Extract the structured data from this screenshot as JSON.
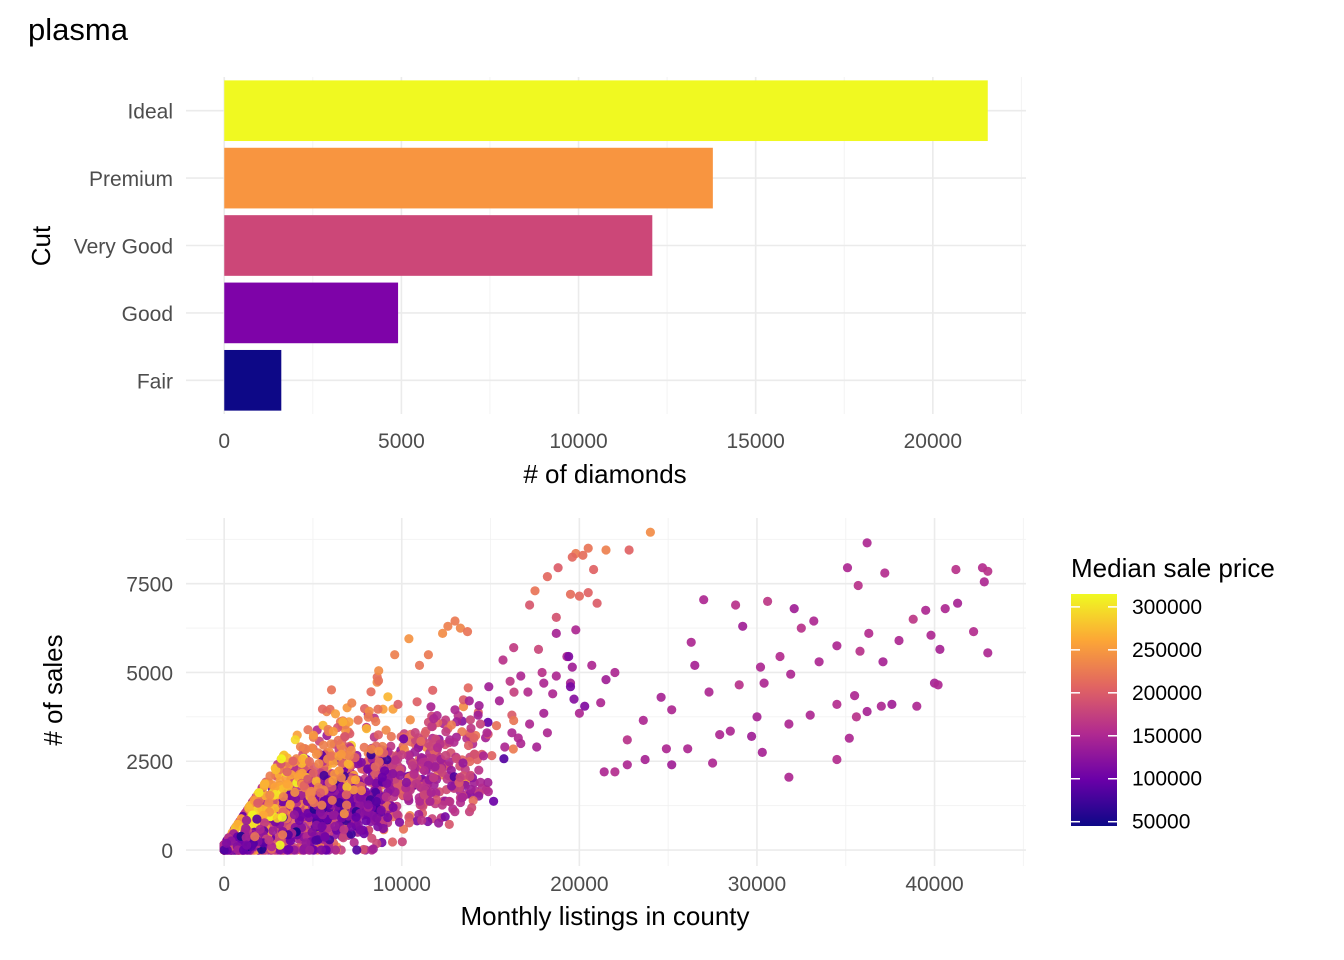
{
  "figure": {
    "title": "plasma",
    "palette": [
      "#0d0887",
      "#6a00a8",
      "#b12a90",
      "#e16462",
      "#fca636",
      "#f0f921"
    ]
  },
  "chart_data": [
    {
      "type": "bar",
      "orientation": "horizontal",
      "categories": [
        "Fair",
        "Good",
        "Very Good",
        "Premium",
        "Ideal"
      ],
      "values": [
        1610,
        4906,
        12082,
        13791,
        21551
      ],
      "colors": [
        "#0d0887",
        "#7e03a8",
        "#cc4778",
        "#f89540",
        "#f0f921"
      ],
      "xlabel": "# of diamonds",
      "ylabel": "Cut",
      "xlim": [
        -1080,
        22630
      ],
      "xticks": [
        "0",
        "5000",
        "10000",
        "15000",
        "20000"
      ],
      "grid": true
    },
    {
      "type": "scatter",
      "xlabel": "Monthly listings in county",
      "ylabel": "# of sales",
      "xlim": [
        -2150,
        45150
      ],
      "ylim": [
        -450,
        9350
      ],
      "xticks": [
        "0",
        "10000",
        "20000",
        "30000",
        "40000"
      ],
      "yticks": [
        "0",
        "2500",
        "5000",
        "7500"
      ],
      "grid": true,
      "color_scale": {
        "title": "Median sale price",
        "min": 45000,
        "max": 315000,
        "ticks": [
          "50000",
          "100000",
          "150000",
          "200000",
          "250000",
          "300000"
        ],
        "colormap": "plasma",
        "legend_position": "right"
      },
      "points_explicit": [
        [
          24000,
          8950,
          240000
        ],
        [
          20500,
          8500,
          220000
        ],
        [
          21500,
          8450,
          230000
        ],
        [
          19800,
          8350,
          225000
        ],
        [
          20200,
          8300,
          215000
        ],
        [
          19600,
          8250,
          210000
        ],
        [
          22800,
          8450,
          205000
        ],
        [
          18800,
          7950,
          200000
        ],
        [
          20800,
          7900,
          205000
        ],
        [
          18200,
          7700,
          210000
        ],
        [
          17500,
          7300,
          220000
        ],
        [
          19500,
          7200,
          215000
        ],
        [
          20000,
          7150,
          210000
        ],
        [
          20500,
          7250,
          205000
        ],
        [
          21000,
          6950,
          200000
        ],
        [
          17200,
          6900,
          195000
        ],
        [
          18700,
          6550,
          190000
        ],
        [
          13300,
          6250,
          235000
        ],
        [
          13700,
          6150,
          220000
        ],
        [
          12600,
          6300,
          230000
        ],
        [
          12300,
          6100,
          240000
        ],
        [
          13000,
          6450,
          225000
        ],
        [
          10400,
          5950,
          245000
        ],
        [
          9600,
          5500,
          230000
        ],
        [
          8700,
          5050,
          240000
        ],
        [
          11500,
          5500,
          225000
        ],
        [
          11000,
          5200,
          220000
        ],
        [
          26300,
          5850,
          150000
        ],
        [
          26500,
          5200,
          145000
        ],
        [
          29200,
          6300,
          140000
        ],
        [
          27000,
          7050,
          150000
        ],
        [
          28800,
          6900,
          160000
        ],
        [
          30600,
          7000,
          165000
        ],
        [
          32500,
          6250,
          160000
        ],
        [
          33200,
          6450,
          150000
        ],
        [
          36200,
          8650,
          150000
        ],
        [
          35100,
          7950,
          150000
        ],
        [
          35700,
          7450,
          160000
        ],
        [
          37200,
          7800,
          155000
        ],
        [
          41200,
          7900,
          160000
        ],
        [
          42700,
          7950,
          155000
        ],
        [
          43000,
          7850,
          160000
        ],
        [
          42800,
          7550,
          150000
        ],
        [
          43000,
          5550,
          150000
        ],
        [
          41300,
          6950,
          145000
        ],
        [
          40600,
          6800,
          150000
        ],
        [
          39500,
          6750,
          150000
        ],
        [
          38800,
          6500,
          165000
        ],
        [
          39800,
          6050,
          150000
        ],
        [
          42200,
          6150,
          155000
        ],
        [
          40300,
          5650,
          145000
        ],
        [
          40000,
          4700,
          145000
        ],
        [
          40200,
          4650,
          150000
        ],
        [
          39000,
          4050,
          150000
        ],
        [
          37600,
          4100,
          140000
        ],
        [
          37000,
          4050,
          150000
        ],
        [
          36200,
          3900,
          145000
        ],
        [
          35500,
          4350,
          150000
        ],
        [
          35600,
          3750,
          160000
        ],
        [
          34500,
          4100,
          155000
        ],
        [
          33000,
          3800,
          150000
        ],
        [
          31800,
          3550,
          150000
        ],
        [
          30000,
          3750,
          145000
        ],
        [
          29700,
          3200,
          140000
        ],
        [
          28500,
          3350,
          150000
        ],
        [
          27900,
          3250,
          150000
        ],
        [
          29000,
          4650,
          160000
        ],
        [
          30400,
          4700,
          150000
        ],
        [
          31900,
          4950,
          150000
        ],
        [
          33500,
          5300,
          150000
        ],
        [
          34500,
          5750,
          150000
        ],
        [
          35800,
          5600,
          160000
        ],
        [
          36300,
          6100,
          155000
        ],
        [
          37100,
          5300,
          145000
        ],
        [
          38000,
          5900,
          150000
        ],
        [
          32100,
          6800,
          140000
        ],
        [
          31300,
          5450,
          155000
        ],
        [
          30200,
          5150,
          150000
        ],
        [
          27300,
          4450,
          150000
        ],
        [
          25200,
          3950,
          150000
        ],
        [
          24600,
          4300,
          145000
        ],
        [
          23600,
          3650,
          150000
        ],
        [
          22700,
          3100,
          160000
        ],
        [
          21400,
          2200,
          150000
        ],
        [
          22000,
          2200,
          155000
        ],
        [
          22700,
          2400,
          150000
        ],
        [
          23700,
          2550,
          145000
        ],
        [
          24900,
          2850,
          150000
        ],
        [
          25200,
          2400,
          140000
        ],
        [
          26100,
          2850,
          150000
        ],
        [
          27500,
          2450,
          150000
        ],
        [
          30300,
          2750,
          145000
        ],
        [
          31800,
          2050,
          150000
        ],
        [
          35200,
          3150,
          150000
        ],
        [
          34500,
          2550,
          155000
        ],
        [
          22000,
          5000,
          150000
        ],
        [
          21500,
          4800,
          140000
        ],
        [
          20700,
          5200,
          150000
        ],
        [
          19600,
          5150,
          140000
        ],
        [
          19300,
          5450,
          150000
        ],
        [
          18700,
          4900,
          150000
        ],
        [
          19500,
          4700,
          145000
        ],
        [
          21200,
          4150,
          150000
        ],
        [
          20000,
          3850,
          150000
        ],
        [
          19700,
          4250,
          120000
        ],
        [
          19500,
          4600,
          110000
        ],
        [
          20300,
          4050,
          115000
        ],
        [
          19400,
          5450,
          115000
        ],
        [
          17700,
          5650,
          180000
        ],
        [
          16300,
          5700,
          170000
        ],
        [
          15700,
          5350,
          160000
        ],
        [
          16700,
          4900,
          150000
        ],
        [
          14900,
          4600,
          140000
        ],
        [
          13800,
          4200,
          145000
        ],
        [
          13000,
          3950,
          150000
        ],
        [
          16100,
          4750,
          165000
        ],
        [
          17100,
          4450,
          155000
        ],
        [
          18500,
          4400,
          150000
        ],
        [
          18000,
          3850,
          145000
        ],
        [
          17200,
          3550,
          150000
        ],
        [
          16700,
          3000,
          150000
        ],
        [
          17600,
          2900,
          145000
        ],
        [
          18200,
          3300,
          150000
        ],
        [
          16200,
          3300,
          150000
        ],
        [
          15800,
          2900,
          150000
        ],
        [
          14800,
          3300,
          150000
        ],
        [
          14600,
          2650,
          150000
        ],
        [
          15500,
          4200,
          145000
        ],
        [
          14300,
          3800,
          140000
        ],
        [
          12700,
          3100,
          150000
        ],
        [
          11800,
          3700,
          150000
        ],
        [
          18700,
          6100,
          145000
        ],
        [
          19800,
          6200,
          150000
        ],
        [
          17900,
          5000,
          160000
        ],
        [
          18000,
          4700,
          150000
        ]
      ],
      "point_clusters": [
        {
          "cx": 3000,
          "cy": 800,
          "sx": 2500,
          "sy": 800,
          "n": 520,
          "base_price": 190000,
          "price_sd": 35000,
          "slope": 0.32
        },
        {
          "cx": 9500,
          "cy": 1900,
          "sx": 2600,
          "sy": 700,
          "n": 420,
          "base_price": 175000,
          "price_sd": 30000,
          "slope": 0.25
        },
        {
          "cx": 6500,
          "cy": 1200,
          "sx": 1800,
          "sy": 600,
          "n": 260,
          "base_price": 110000,
          "price_sd": 20000,
          "slope": 0.2
        },
        {
          "cx": 2500,
          "cy": 1500,
          "sx": 1200,
          "sy": 600,
          "n": 130,
          "base_price": 260000,
          "price_sd": 30000,
          "slope": 0.45
        },
        {
          "cx": 6500,
          "cy": 2700,
          "sx": 1600,
          "sy": 700,
          "n": 110,
          "base_price": 230000,
          "price_sd": 25000,
          "slope": 0.35
        },
        {
          "cx": 1000,
          "cy": 150,
          "sx": 700,
          "sy": 180,
          "n": 180,
          "base_price": 130000,
          "price_sd": 40000,
          "slope": 0.15
        },
        {
          "cx": 12500,
          "cy": 1700,
          "sx": 1100,
          "sy": 500,
          "n": 90,
          "base_price": 160000,
          "price_sd": 25000,
          "slope": 0.1
        }
      ]
    }
  ]
}
